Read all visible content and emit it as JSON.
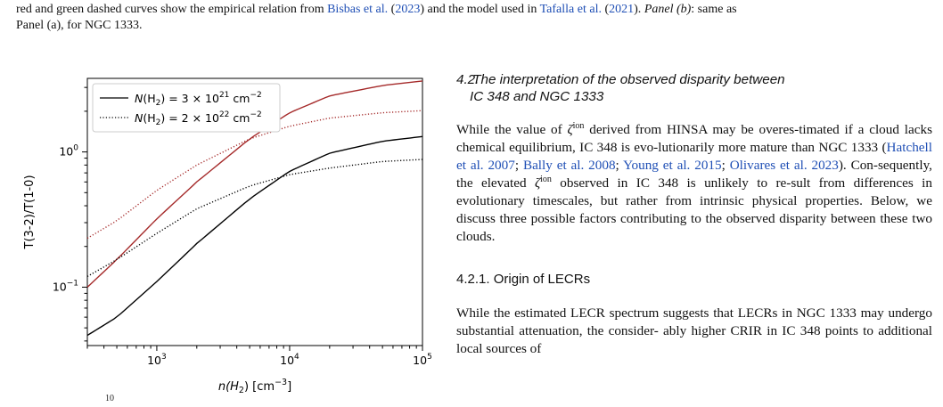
{
  "caption": {
    "line1_a": "red and green dashed curves show the empirical relation from ",
    "cite1_name": "Bisbas et al.",
    "cite1_paren_open": " (",
    "cite1_year": "2023",
    "cite1_paren_close": ") and the model used in ",
    "cite2_name": "Tafalla et al.",
    "cite2_year": "2021",
    "cite2_tail": "). ",
    "panel_b": "Panel (b)",
    "panel_b_text": ": same as",
    "line2": "Panel (a), for NGC 1333."
  },
  "section": {
    "number": "4.2.",
    "title_line1": "The interpretation of the observed disparity between",
    "title_line2": "IC 348 and NGC 1333"
  },
  "paragraph": {
    "p1": "While the value of ",
    "zeta": "ζ",
    "ion": "ion",
    "p2": " derived from HINSA may be overes-timated if a cloud lacks chemical equilibrium, IC 348 is evo-lutionarily more mature than NGC 1333 (",
    "ref1": "Hatchell et al. 2007",
    "sep1": "; ",
    "ref2": "Bally et al. 2008",
    "sep2": "; ",
    "ref3": "Young et al. 2015",
    "sep3": "; ",
    "ref4": "Olivares et al. 2023",
    "p3": "). Con-sequently, the elevated ",
    "p4": " observed in IC 348 is unlikely to re-sult from differences in evolutionary timescales, but rather from intrinsic physical properties. Below, we discuss three possible factors contributing to the observed disparity between these two clouds."
  },
  "subsection": {
    "number": "4.2.1.",
    "title": "Origin of LECRs"
  },
  "paragraph2": {
    "line1": "While the estimated LECR spectrum suggests that LECRs in",
    "line2": "NGC 1333 may undergo substantial attenuation, the consider-",
    "line3": "ably higher CRIR in IC 348 points to additional local sources of"
  },
  "bottom_fragment": "10",
  "colors": {
    "black_curve": "#000000",
    "red_curve": "#a52a2a",
    "link": "#1f4fb5"
  },
  "chart_data": {
    "type": "line",
    "x_scale": "log",
    "y_scale": "log",
    "xlim": [
      300,
      100000
    ],
    "ylim": [
      0.037,
      3.5
    ],
    "xlabel_main": "n(H",
    "xlabel_sub": "2",
    "xlabel_unit": ") [cm",
    "xlabel_exp": "−3",
    "xlabel_close": "]",
    "ylabel": "T(3-2)/T(1-0)",
    "x_ticks": [
      {
        "value": 1000,
        "base": "10",
        "exp": "3"
      },
      {
        "value": 10000,
        "base": "10",
        "exp": "4"
      },
      {
        "value": 100000,
        "base": "10",
        "exp": "5"
      }
    ],
    "y_ticks": [
      {
        "value": 0.1,
        "base": "10",
        "exp": "−1"
      },
      {
        "value": 1,
        "base": "10",
        "exp": "0"
      }
    ],
    "legend_position": "top-left",
    "legend": [
      {
        "style": "solid",
        "pre": "N",
        "mid": "(H",
        "sub": "2",
        "eq": ") = 3 × 10",
        "exp": "21",
        "unit": " cm",
        "uexp": "−2"
      },
      {
        "style": "dotted",
        "pre": "N",
        "mid": "(H",
        "sub": "2",
        "eq": ") = 2 × 10",
        "exp": "22",
        "unit": " cm",
        "uexp": "−2"
      }
    ],
    "series": [
      {
        "style": "solid",
        "color": "#000000",
        "x": [
          300,
          500,
          1000,
          2000,
          5000,
          10000,
          20000,
          50000,
          100000
        ],
        "y": [
          0.044,
          0.06,
          0.11,
          0.21,
          0.45,
          0.72,
          0.98,
          1.2,
          1.3
        ]
      },
      {
        "style": "solid",
        "color": "#a52a2a",
        "x": [
          300,
          500,
          1000,
          2000,
          5000,
          10000,
          20000,
          50000,
          100000
        ],
        "y": [
          0.1,
          0.16,
          0.32,
          0.6,
          1.25,
          1.95,
          2.6,
          3.1,
          3.35
        ]
      },
      {
        "style": "dotted",
        "color": "#000000",
        "x": [
          300,
          500,
          1000,
          2000,
          5000,
          10000,
          20000,
          50000,
          100000
        ],
        "y": [
          0.12,
          0.16,
          0.25,
          0.38,
          0.56,
          0.68,
          0.76,
          0.85,
          0.88
        ]
      },
      {
        "style": "dotted",
        "color": "#a52a2a",
        "x": [
          300,
          500,
          1000,
          2000,
          5000,
          10000,
          20000,
          50000,
          100000
        ],
        "y": [
          0.23,
          0.31,
          0.52,
          0.8,
          1.25,
          1.55,
          1.78,
          1.95,
          2.02
        ]
      }
    ]
  }
}
